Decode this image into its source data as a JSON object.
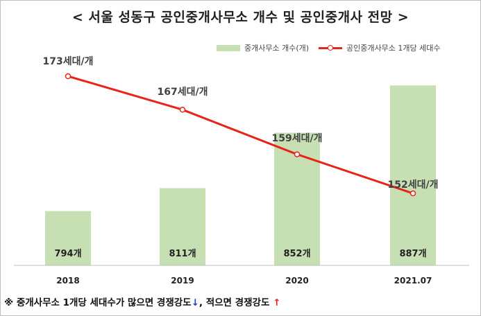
{
  "title": "< 서울 성동구 공인중개사무소 개수 및 공인중개사 전망 >",
  "legend": {
    "bar_label": "중개사무소 개수(개)",
    "line_label": "공인중개사무소 1개당 세대수"
  },
  "colors": {
    "bar": "#c6e0b4",
    "line": "#e8231a",
    "arrow_down": "#1f3ccf",
    "arrow_up": "#e8231a"
  },
  "chart_data": {
    "type": "bar",
    "categories": [
      "2018",
      "2019",
      "2020",
      "2021.07"
    ],
    "series": [
      {
        "name": "중개사무소 개수(개)",
        "type": "bar",
        "values": [
          794,
          811,
          852,
          887
        ],
        "labels": [
          "794개",
          "811개",
          "852개",
          "887개"
        ]
      },
      {
        "name": "공인중개사무소 1개당 세대수",
        "type": "line",
        "values": [
          173,
          167,
          159,
          152
        ],
        "labels": [
          "173세대/개",
          "167세대/개",
          "159세대/개",
          "152세대/개"
        ]
      }
    ],
    "grid": false,
    "legend_position": "top-right"
  },
  "footnote": {
    "part1": "※ 중개사무소 1개당 세대수가 많으면 경쟁강도",
    "arrow_down": "↓",
    "part2": ", 적으면 경쟁강도 ",
    "arrow_up": "↑"
  }
}
